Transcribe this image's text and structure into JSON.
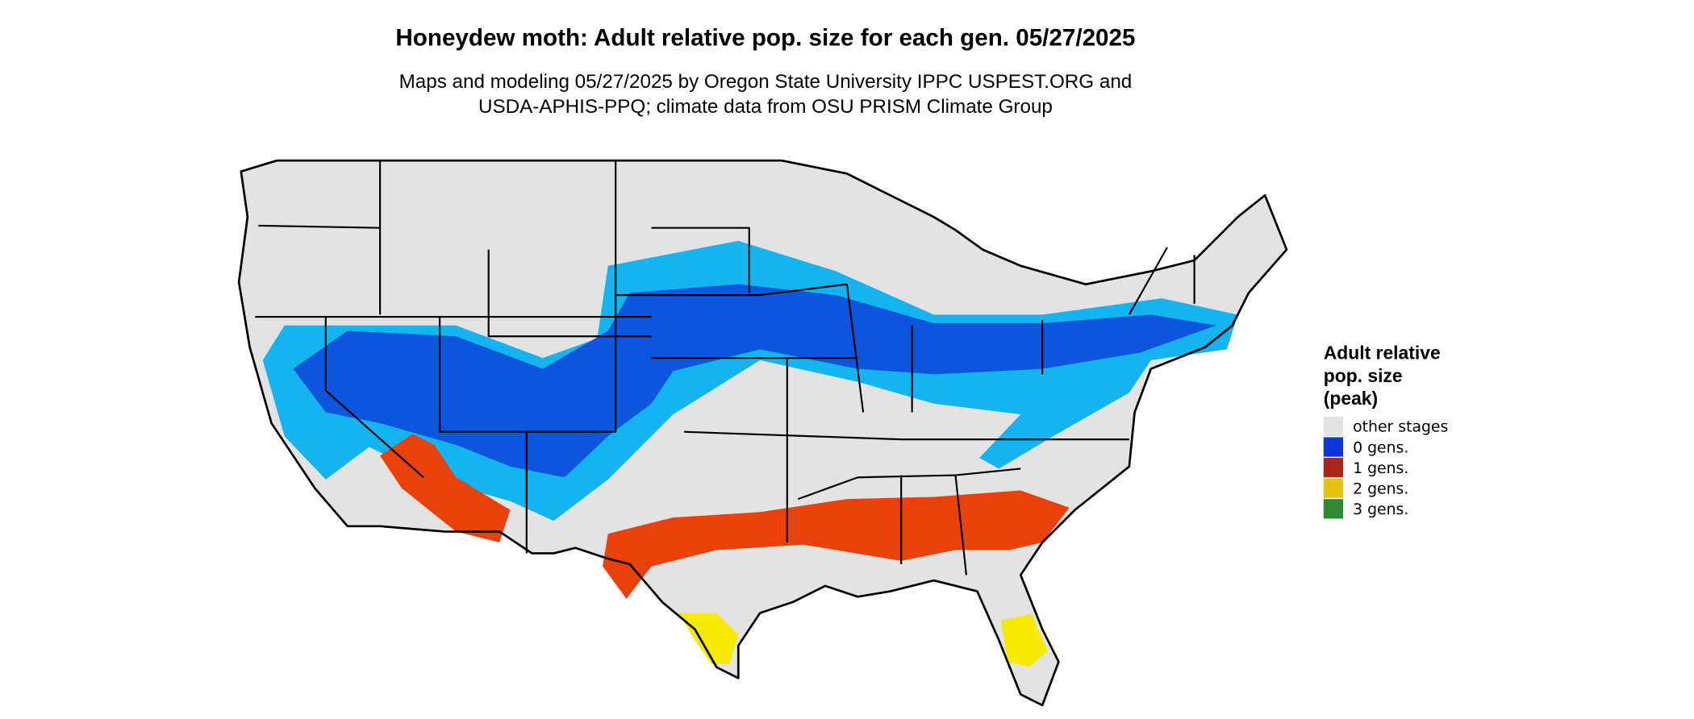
{
  "header": {
    "title": "Honeydew moth: Adult relative pop. size for each gen. 05/27/2025",
    "subtitle": [
      "Maps and modeling 05/27/2025 by Oregon State University IPPC USPEST.ORG and",
      "USDA-APHIS-PPQ; climate data from OSU PRISM Climate Group"
    ]
  },
  "legend": {
    "title": [
      "Adult relative",
      "pop. size",
      "(peak)"
    ],
    "items": [
      {
        "label": "other stages",
        "color": "#e3e3e3"
      },
      {
        "label": "0 gens.",
        "color": "#0a37d8"
      },
      {
        "label": "1 gens.",
        "color": "#a8251a"
      },
      {
        "label": "2 gens.",
        "color": "#e3c511"
      },
      {
        "label": "3 gens.",
        "color": "#2b8a2f"
      }
    ]
  }
}
